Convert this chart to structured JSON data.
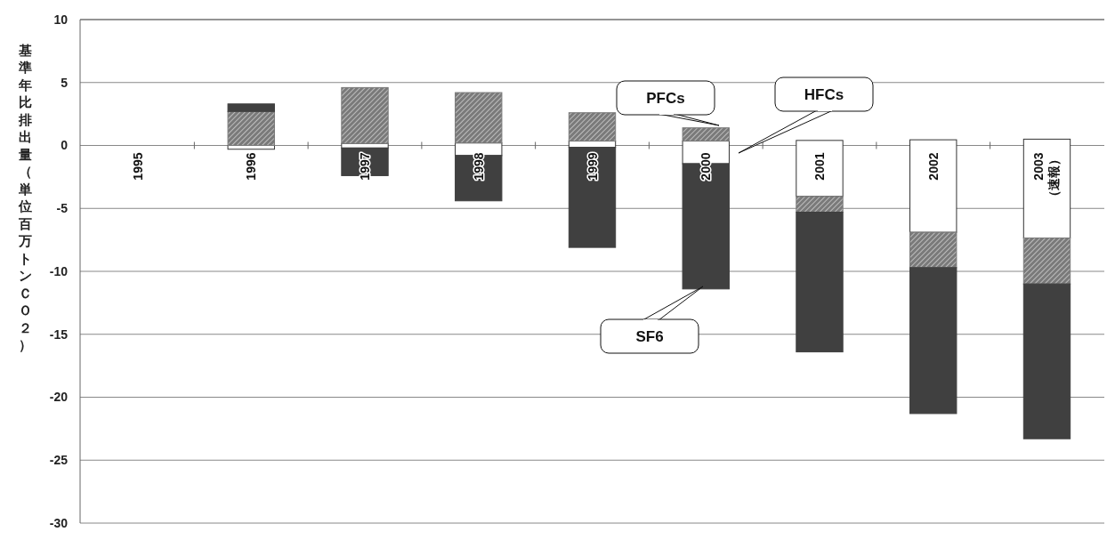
{
  "chart_data": {
    "type": "bar",
    "ylabel": "基準年比排出量（単位百万トンＣＯ２）",
    "categories": [
      "1995",
      "1996",
      "1997",
      "1998",
      "1999",
      "2000",
      "2001",
      "2002",
      "2003\n（速報）"
    ],
    "series": [
      {
        "color": "#ffffff",
        "base": [
          null,
          -0.3,
          -0.2,
          -0.8,
          -0.15,
          -1.45,
          -4.05,
          -6.9,
          -7.35
        ],
        "values": [
          null,
          0.3,
          0.35,
          1.0,
          0.5,
          1.8,
          4.45,
          7.35,
          7.85
        ]
      },
      {
        "color": "#7a7a7a",
        "base": [
          null,
          0,
          0.15,
          0.2,
          0.35,
          0.35,
          -5.3,
          -9.7,
          -11.0
        ],
        "values": [
          null,
          2.7,
          4.45,
          4.0,
          2.25,
          1.05,
          1.25,
          2.8,
          3.65
        ]
      },
      {
        "color": "#404040",
        "base": [
          null,
          2.7,
          -2.4,
          -4.4,
          -8.1,
          -11.4,
          -16.4,
          -21.3,
          -23.3
        ],
        "values": [
          null,
          0.6,
          2.2,
          3.6,
          7.95,
          9.95,
          11.1,
          11.6,
          12.3
        ]
      }
    ],
    "ylim": [
      -30,
      10
    ],
    "yticks": [
      -30,
      -25,
      -20,
      -15,
      -10,
      -5,
      0,
      5,
      10
    ],
    "grid": "y",
    "legend": false,
    "annotations": [
      "PFCs",
      "HFCs",
      "SF6"
    ]
  }
}
